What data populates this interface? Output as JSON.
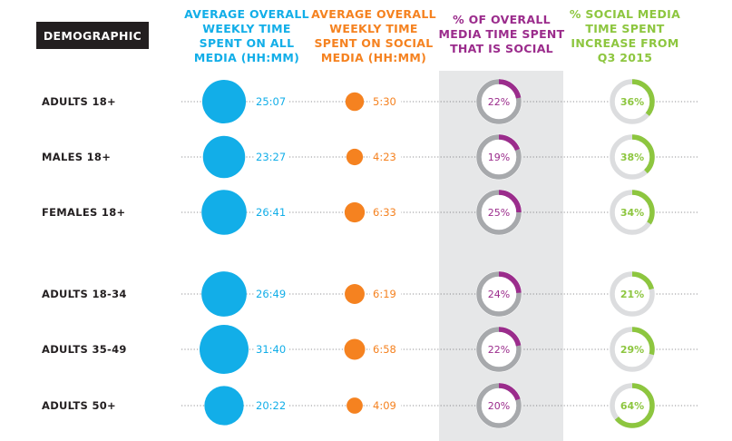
{
  "headers": {
    "demographic": "DEMOGRAPHIC",
    "total": "AVERAGE OVERALL WEEKLY TIME SPENT ON ALL MEDIA (HH:MM)",
    "social": "AVERAGE OVERALL WEEKLY TIME SPENT ON SOCIAL MEDIA (HH:MM)",
    "share": "% OF OVERALL MEDIA TIME SPENT THAT IS SOCIAL",
    "increase": "% SOCIAL MEDIA TIME SPENT INCREASE FROM Q3 2015"
  },
  "colors": {
    "total": "#12aee8",
    "social": "#f58220",
    "share": "#9b2c8c",
    "increase": "#8dc63f",
    "ring_track": "#a7a9ac",
    "ring_track_light": "#dcdddf",
    "panel": "#e6e7e8",
    "text": "#231f20"
  },
  "chart_data": {
    "type": "table",
    "categories": [
      "ADULTS 18+",
      "MALES 18+",
      "FEMALES 18+",
      "ADULTS 18-34",
      "ADULTS 35-49",
      "ADULTS 50+"
    ],
    "series": [
      {
        "name": "AVERAGE OVERALL WEEKLY TIME SPENT ON ALL MEDIA (HH:MM)",
        "labels": [
          "25:07",
          "23:27",
          "26:41",
          "26:49",
          "31:40",
          "20:22"
        ],
        "values_minutes": [
          1507,
          1407,
          1601,
          1609,
          1900,
          1222
        ]
      },
      {
        "name": "AVERAGE OVERALL WEEKLY TIME SPENT ON SOCIAL MEDIA (HH:MM)",
        "labels": [
          "5:30",
          "4:23",
          "6:33",
          "6:19",
          "6:58",
          "4:09"
        ],
        "values_minutes": [
          330,
          263,
          393,
          379,
          418,
          249
        ]
      },
      {
        "name": "% OF OVERALL MEDIA TIME SPENT THAT IS SOCIAL",
        "labels": [
          "22%",
          "19%",
          "25%",
          "24%",
          "22%",
          "20%"
        ],
        "values": [
          22,
          19,
          25,
          24,
          22,
          20
        ]
      },
      {
        "name": "% SOCIAL MEDIA TIME SPENT INCREASE FROM Q3 2015",
        "labels": [
          "36%",
          "38%",
          "34%",
          "21%",
          "29%",
          "64%"
        ],
        "values": [
          36,
          38,
          34,
          21,
          29,
          64
        ]
      }
    ]
  }
}
